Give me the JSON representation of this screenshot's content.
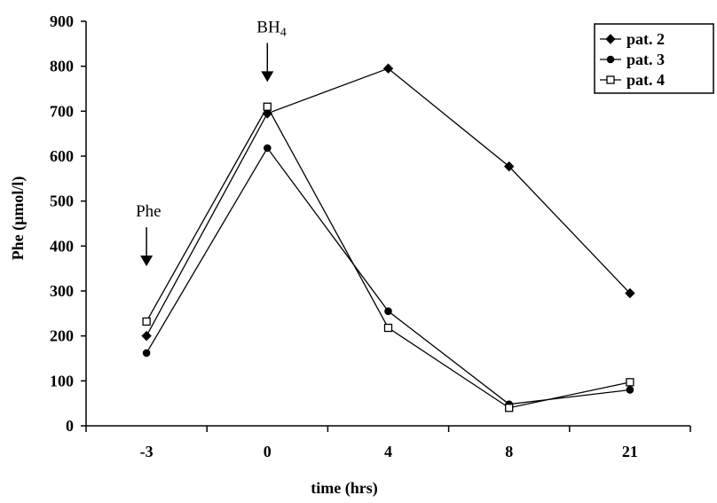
{
  "chart_data": {
    "type": "line",
    "categories": [
      "-3",
      "0",
      "4",
      "8",
      "21"
    ],
    "xlabel": "time (hrs)",
    "ylabel": "Phe (µmol/l)",
    "ylim": [
      0,
      900
    ],
    "yticks": [
      0,
      100,
      200,
      300,
      400,
      500,
      600,
      700,
      800,
      900
    ],
    "grid": false,
    "legend_position": "top-right",
    "series": [
      {
        "name": "pat. 2",
        "marker": "diamond-filled",
        "values": [
          200,
          695,
          795,
          577,
          295
        ]
      },
      {
        "name": "pat. 3",
        "marker": "circle-filled",
        "values": [
          162,
          618,
          255,
          48,
          80
        ]
      },
      {
        "name": "pat. 4",
        "marker": "square-open",
        "values": [
          232,
          710,
          218,
          40,
          97
        ]
      }
    ],
    "annotations": [
      {
        "text": "Phe",
        "subscript": "",
        "category": "-3",
        "arrow_to_value": 355
      },
      {
        "text": "BH",
        "subscript": "4",
        "category": "0",
        "arrow_to_value": 765
      }
    ]
  }
}
